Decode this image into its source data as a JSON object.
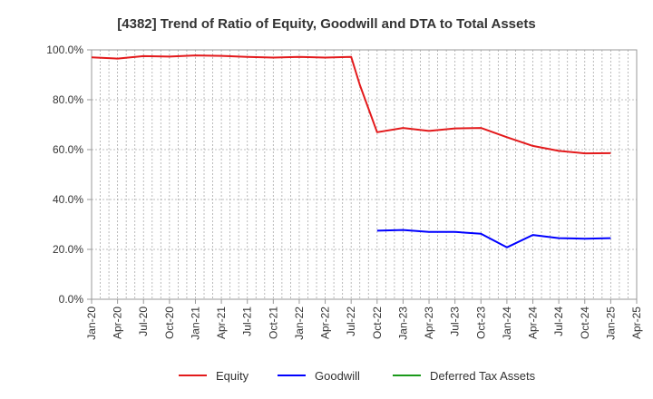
{
  "chart_data": {
    "type": "line",
    "title": "[4382]  Trend of Ratio of Equity, Goodwill and DTA to Total Assets",
    "xlabel": "",
    "ylabel": "",
    "x_ticks": [
      "Jan-20",
      "Apr-20",
      "Jul-20",
      "Oct-20",
      "Jan-21",
      "Apr-21",
      "Jul-21",
      "Oct-21",
      "Jan-22",
      "Apr-22",
      "Jul-22",
      "Oct-22",
      "Jan-23",
      "Apr-23",
      "Jul-23",
      "Oct-23",
      "Jan-24",
      "Apr-24",
      "Jul-24",
      "Oct-24",
      "Jan-25",
      "Apr-25"
    ],
    "y_ticks": [
      "0.0%",
      "20.0%",
      "40.0%",
      "60.0%",
      "80.0%",
      "100.0%"
    ],
    "ylim": [
      0,
      100
    ],
    "grid": true,
    "legend_position": "bottom",
    "series": [
      {
        "name": "Equity",
        "color": "#e31a1c",
        "x": [
          "Jan-20",
          "Apr-20",
          "Jul-20",
          "Oct-20",
          "Jan-21",
          "Apr-21",
          "Jul-21",
          "Oct-21",
          "Jan-22",
          "Apr-22",
          "Jul-22",
          "Aug-22",
          "Oct-22",
          "Jan-23",
          "Apr-23",
          "Jul-23",
          "Oct-23",
          "Jan-24",
          "Apr-24",
          "Jul-24",
          "Oct-24",
          "Jan-25"
        ],
        "values": [
          97.0,
          96.5,
          97.5,
          97.3,
          97.8,
          97.6,
          97.2,
          96.9,
          97.2,
          96.9,
          97.2,
          86.0,
          67.0,
          68.7,
          67.5,
          68.5,
          68.7,
          65.0,
          61.5,
          59.5,
          58.5,
          58.6
        ]
      },
      {
        "name": "Goodwill",
        "color": "#0000ff",
        "x": [
          "Oct-22",
          "Jan-23",
          "Apr-23",
          "Jul-23",
          "Oct-23",
          "Jan-24",
          "Apr-24",
          "Jul-24",
          "Oct-24",
          "Jan-25"
        ],
        "values": [
          27.5,
          27.8,
          27.0,
          27.0,
          26.3,
          20.8,
          25.8,
          24.5,
          24.3,
          24.5
        ]
      },
      {
        "name": "Deferred Tax Assets",
        "color": "#1a9a1a",
        "x": [],
        "values": []
      }
    ]
  }
}
